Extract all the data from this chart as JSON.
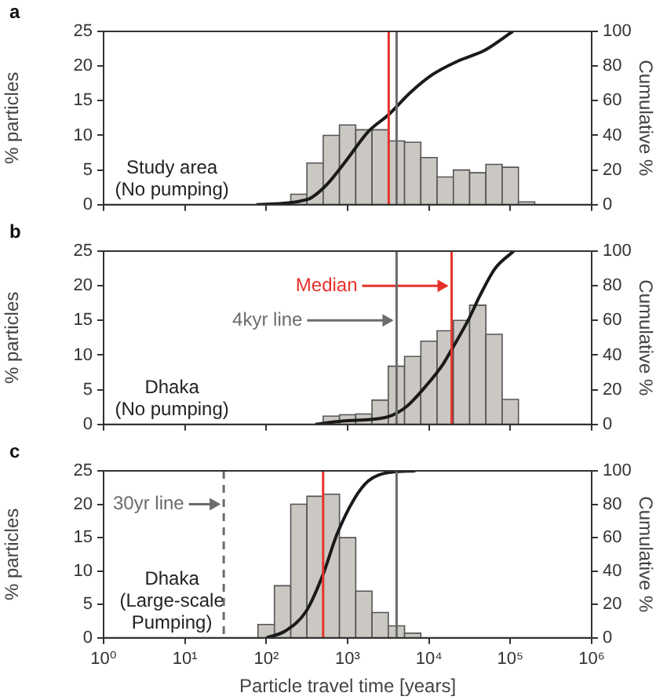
{
  "chart_data": [
    {
      "type": "histogram",
      "title": "a",
      "ylabel": "% particles",
      "y2label": "Cumulative %",
      "annotations": [
        "Study area\n(No pumping)"
      ],
      "log": "x",
      "grid": false,
      "legend": false,
      "marker": "none",
      "tick_labels": "y",
      "xlim": [
        1,
        1000000
      ],
      "xticks": [
        {
          "value": 1,
          "label": null
        },
        {
          "value": 10,
          "label": null
        },
        {
          "value": 100,
          "label": null
        },
        {
          "value": 1000,
          "label": null
        },
        {
          "value": 10000,
          "label": null
        },
        {
          "value": 100000,
          "label": null
        },
        {
          "value": 1000000,
          "label": null
        }
      ],
      "ylim": [
        0,
        25
      ],
      "yticks": [
        0,
        5,
        10,
        15,
        20,
        25
      ],
      "y2lim": [
        0,
        100
      ],
      "y2ticks": [
        0,
        20,
        40,
        60,
        80,
        100
      ],
      "series": [
        {
          "type": "histogram",
          "color": "#cbc7c3",
          "bins": [
            200,
            316,
            501,
            794,
            1259,
            1995,
            3162,
            5012,
            7943,
            12589,
            19953,
            31623,
            50119,
            79433,
            125893,
            199526
          ],
          "values": [
            1.5,
            6,
            10,
            11.5,
            10.8,
            10.8,
            9.2,
            9,
            6.8,
            4,
            5,
            4.6,
            5.8,
            5.4,
            0.4
          ]
        },
        {
          "type": "line",
          "axis": "y2",
          "color": "#1a1a1a",
          "x": [
            76,
            320,
            540,
            980,
            1780,
            3200,
            6000,
            11000,
            23000,
            48000,
            87000,
            107000
          ],
          "values": [
            0,
            3,
            11,
            26,
            42,
            52,
            65,
            75,
            83,
            89,
            97,
            100
          ]
        }
      ],
      "ref_lines": [
        {
          "axis": "x",
          "value": 3200,
          "color": "#e8312a"
        },
        {
          "axis": "x",
          "value": 4000,
          "color": "#6b6b6b"
        }
      ]
    },
    {
      "type": "histogram",
      "title": "b",
      "ylabel": "% particles",
      "y2label": "Cumulative %",
      "annotations": [
        "Dhaka\n(No pumping)"
      ],
      "log": "x",
      "grid": false,
      "legend": false,
      "marker": "none",
      "tick_labels": "y",
      "xlim": [
        1,
        1000000
      ],
      "xticks": [
        {
          "value": 1,
          "label": null
        },
        {
          "value": 10,
          "label": null
        },
        {
          "value": 100,
          "label": null
        },
        {
          "value": 1000,
          "label": null
        },
        {
          "value": 10000,
          "label": null
        },
        {
          "value": 100000,
          "label": null
        },
        {
          "value": 1000000,
          "label": null
        }
      ],
      "ylim": [
        0,
        25
      ],
      "yticks": [
        0,
        5,
        10,
        15,
        20,
        25
      ],
      "y2lim": [
        0,
        100
      ],
      "y2ticks": [
        0,
        20,
        40,
        60,
        80,
        100
      ],
      "series": [
        {
          "type": "histogram",
          "color": "#cbc7c3",
          "bins": [
            501,
            794,
            1259,
            1995,
            3162,
            5012,
            7943,
            12589,
            19953,
            31623,
            50119,
            79433,
            125893
          ],
          "values": [
            1.2,
            1.4,
            1.5,
            3.5,
            8.4,
            9.8,
            12,
            13.5,
            15,
            17.2,
            13,
            3.6
          ]
        },
        {
          "type": "line",
          "axis": "y2",
          "color": "#1a1a1a",
          "x": [
            400,
            870,
            2900,
            5200,
            9500,
            15000,
            20000,
            31000,
            42000,
            65000,
            110000
          ],
          "values": [
            0,
            2,
            4,
            10,
            23,
            35,
            45,
            61,
            74,
            90,
            100
          ]
        }
      ],
      "ref_lines": [
        {
          "axis": "x",
          "value": 19000,
          "color": "#e8312a",
          "label": "Median"
        },
        {
          "axis": "x",
          "value": 4000,
          "color": "#6b6b6b",
          "label": "4kyr line"
        }
      ]
    },
    {
      "type": "histogram",
      "title": "c",
      "xlabel": "Particle travel time [years]",
      "ylabel": "% particles",
      "y2label": "Cumulative %",
      "annotations": [
        "Dhaka\n(Large-scale\nPumping)"
      ],
      "log": "x",
      "grid": false,
      "legend": false,
      "marker": "none",
      "xlim": [
        1,
        1000000
      ],
      "xticks": [
        {
          "value": 1,
          "label": "10⁰"
        },
        {
          "value": 10,
          "label": "10¹"
        },
        {
          "value": 100,
          "label": "10²"
        },
        {
          "value": 1000,
          "label": "10³"
        },
        {
          "value": 10000,
          "label": "10⁴"
        },
        {
          "value": 100000,
          "label": "10⁵"
        },
        {
          "value": 1000000,
          "label": "10⁶"
        }
      ],
      "ylim": [
        0,
        25
      ],
      "yticks": [
        0,
        5,
        10,
        15,
        20,
        25
      ],
      "y2lim": [
        0,
        100
      ],
      "y2ticks": [
        0,
        20,
        40,
        60,
        80,
        100
      ],
      "series": [
        {
          "type": "histogram",
          "color": "#cbc7c3",
          "bins": [
            79,
            126,
            200,
            316,
            501,
            794,
            1259,
            1995,
            3162,
            5012,
            7943
          ],
          "values": [
            2,
            7.8,
            20,
            21.2,
            21.5,
            15,
            7,
            3.8,
            1.8,
            0.7
          ]
        },
        {
          "type": "line",
          "axis": "y2",
          "color": "#1a1a1a",
          "x": [
            100,
            170,
            310,
            490,
            740,
            1200,
            1800,
            3200,
            6800
          ],
          "values": [
            0,
            4,
            16,
            37,
            62,
            83,
            94,
            99,
            100
          ]
        }
      ],
      "ref_lines": [
        {
          "axis": "x",
          "value": 500,
          "color": "#e8312a"
        },
        {
          "axis": "x",
          "value": 4000,
          "color": "#6b6b6b"
        },
        {
          "axis": "x",
          "value": 30,
          "color": "#6b6b6b",
          "line_style": "dashed",
          "label": "30yr line"
        }
      ]
    }
  ]
}
